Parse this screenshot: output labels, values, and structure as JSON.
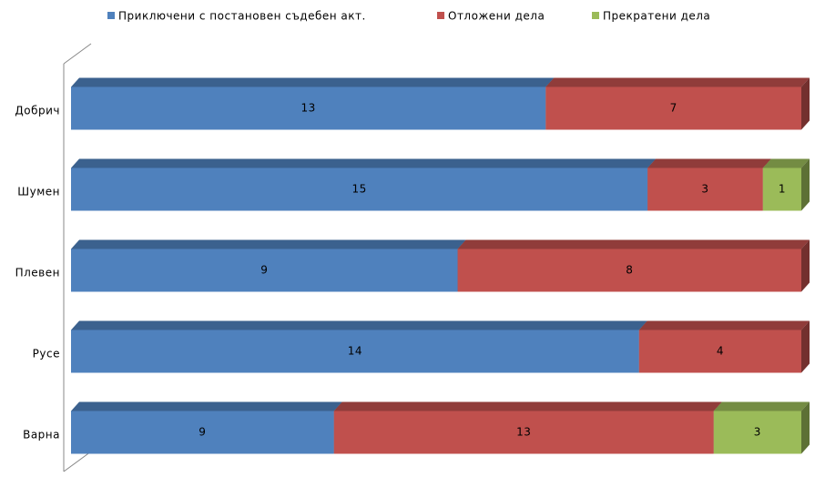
{
  "chart_data": {
    "type": "bar",
    "orientation": "horizontal",
    "stacking": "percent",
    "legend": "top",
    "categories": [
      "Добрич",
      "Шумен",
      "Плевен",
      "Русе",
      "Варна"
    ],
    "series": [
      {
        "name": "Приключени с постановен съдебен акт.",
        "color": "#4f81bd",
        "values": [
          13,
          15,
          9,
          14,
          9
        ]
      },
      {
        "name": "Отложени дела",
        "color": "#c0504d",
        "values": [
          7,
          3,
          8,
          4,
          13
        ]
      },
      {
        "name": "Прекратени дела",
        "color": "#9bbb59",
        "values": [
          null,
          1,
          null,
          null,
          3
        ]
      }
    ]
  }
}
